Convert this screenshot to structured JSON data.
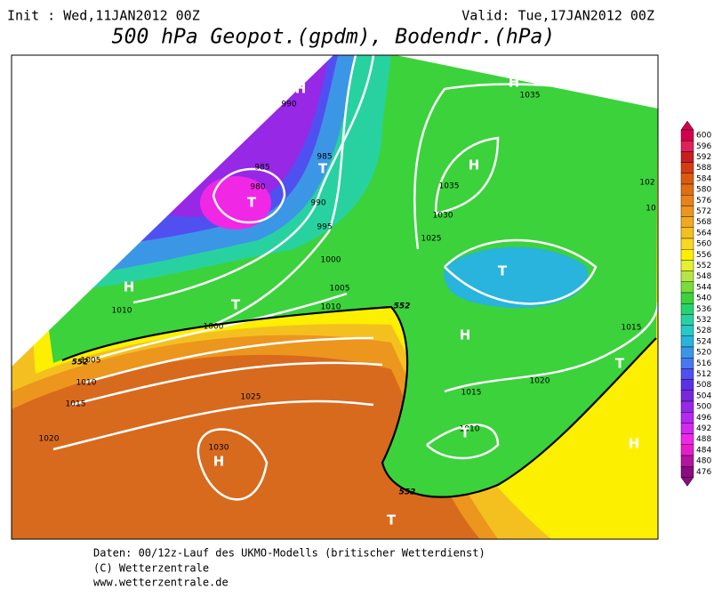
{
  "header": {
    "init": "Init : Wed,11JAN2012 00Z",
    "valid": "Valid: Tue,17JAN2012 00Z",
    "title": "500 hPa Geopot.(gpdm), Bodendr.(hPa)"
  },
  "map": {
    "isobar_labels": [
      "990",
      "985",
      "980",
      "985",
      "990",
      "995",
      "1000",
      "1005",
      "1010",
      "1000",
      "1010",
      "1005",
      "1010",
      "1015",
      "1020",
      "1025",
      "1030",
      "1035",
      "1030",
      "1025",
      "1035",
      "1020",
      "1015",
      "1010",
      "1015",
      "102",
      "10"
    ],
    "contour_labels": [
      "552",
      "552",
      "552"
    ],
    "centers": [
      "H",
      "T",
      "T",
      "H",
      "T",
      "H",
      "H",
      "T",
      "H",
      "H",
      "T",
      "T",
      "H",
      "T"
    ]
  },
  "legend": {
    "levels": [
      600,
      596,
      592,
      588,
      584,
      580,
      576,
      572,
      568,
      564,
      560,
      556,
      552,
      548,
      544,
      540,
      536,
      532,
      528,
      524,
      520,
      516,
      512,
      508,
      504,
      500,
      496,
      492,
      488,
      484,
      480,
      476
    ],
    "colors": [
      "#d4004e",
      "#e0205a",
      "#c81e1e",
      "#d43c14",
      "#dc5a10",
      "#e06e10",
      "#e8821a",
      "#ec961e",
      "#f0aa1e",
      "#f4c020",
      "#f8d820",
      "#fcf000",
      "#e6f032",
      "#b4e646",
      "#78dc3c",
      "#3cd23c",
      "#28d26e",
      "#28d2a0",
      "#28c8c8",
      "#28b4dc",
      "#3c96e6",
      "#4678f0",
      "#5050f0",
      "#5a32e6",
      "#7828dc",
      "#9628e6",
      "#b428f0",
      "#d228f0",
      "#f028e6",
      "#e61ec8",
      "#b414a0",
      "#8c0a82"
    ]
  },
  "footer": {
    "lines": [
      "Daten: 00/12z-Lauf des UKMO-Modells (britischer Wetterdienst)",
      "(C) Wetterzentrale",
      "www.wetterzentrale.de"
    ]
  }
}
